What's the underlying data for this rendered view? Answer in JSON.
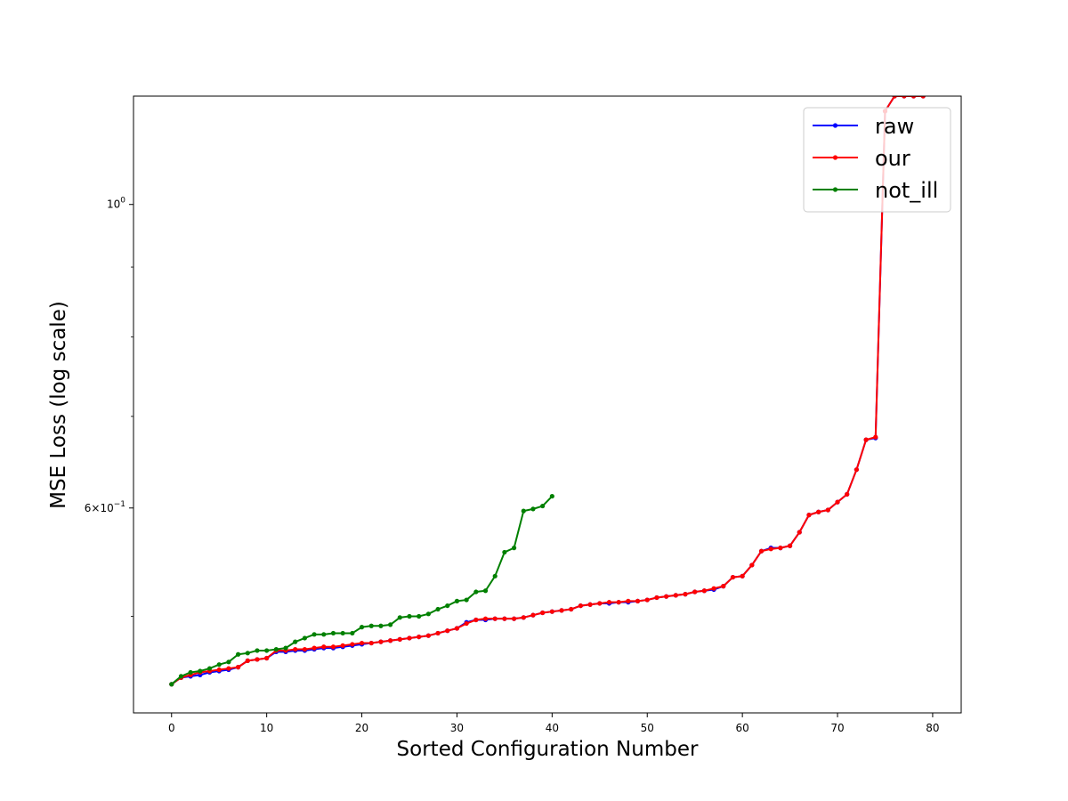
{
  "chart_data": {
    "type": "line",
    "title": "",
    "xlabel": "Sorted Configuration Number",
    "ylabel": "MSE Loss (log scale)",
    "yscale": "log",
    "xlim": [
      -4,
      83
    ],
    "ylim": [
      0.425,
      1.2
    ],
    "xticks": [
      0,
      10,
      20,
      30,
      40,
      50,
      60,
      70,
      80
    ],
    "xtick_labels": [
      "0",
      "10",
      "20",
      "30",
      "40",
      "50",
      "60",
      "70",
      "80"
    ],
    "yticks": [
      1.0,
      0.6
    ],
    "ytick_labels": [
      "10^0",
      "6×10^-1"
    ],
    "grid": false,
    "legend_position": "top-right",
    "series": [
      {
        "name": "raw",
        "color": "#0000ff",
        "values": [
          0.446,
          0.451,
          0.452,
          0.453,
          0.455,
          0.456,
          0.457,
          0.459,
          0.464,
          0.465,
          0.466,
          0.471,
          0.471,
          0.472,
          0.472,
          0.473,
          0.474,
          0.474,
          0.475,
          0.476,
          0.477,
          0.478,
          0.479,
          0.48,
          0.481,
          0.482,
          0.483,
          0.484,
          0.486,
          0.488,
          0.49,
          0.495,
          0.497,
          0.497,
          0.498,
          0.498,
          0.498,
          0.499,
          0.501,
          0.503,
          0.504,
          0.505,
          0.506,
          0.509,
          0.51,
          0.511,
          0.511,
          0.512,
          0.512,
          0.513,
          0.514,
          0.516,
          0.517,
          0.518,
          0.519,
          0.521,
          0.522,
          0.523,
          0.526,
          0.534,
          0.535,
          0.545,
          0.558,
          0.561,
          0.561,
          0.563,
          0.576,
          0.593,
          0.596,
          0.598,
          0.606,
          0.614,
          0.64,
          0.673,
          0.675,
          1.17,
          1.2,
          1.2,
          1.2,
          1.2
        ]
      },
      {
        "name": "our",
        "color": "#ff0000",
        "values": [
          0.446,
          0.451,
          0.453,
          0.455,
          0.456,
          0.457,
          0.458,
          0.459,
          0.464,
          0.465,
          0.466,
          0.472,
          0.472,
          0.473,
          0.473,
          0.474,
          0.475,
          0.475,
          0.476,
          0.477,
          0.478,
          0.478,
          0.479,
          0.48,
          0.481,
          0.482,
          0.483,
          0.484,
          0.486,
          0.488,
          0.49,
          0.494,
          0.497,
          0.498,
          0.498,
          0.498,
          0.498,
          0.499,
          0.501,
          0.503,
          0.504,
          0.505,
          0.506,
          0.509,
          0.51,
          0.511,
          0.512,
          0.512,
          0.513,
          0.513,
          0.514,
          0.516,
          0.517,
          0.518,
          0.519,
          0.521,
          0.522,
          0.524,
          0.526,
          0.534,
          0.535,
          0.545,
          0.558,
          0.56,
          0.561,
          0.563,
          0.576,
          0.593,
          0.596,
          0.598,
          0.606,
          0.614,
          0.64,
          0.673,
          0.676,
          1.17,
          1.2,
          1.2,
          1.2,
          1.2
        ]
      },
      {
        "name": "not_ill",
        "color": "#008000",
        "values": [
          0.446,
          0.452,
          0.455,
          0.456,
          0.458,
          0.461,
          0.463,
          0.469,
          0.47,
          0.472,
          0.472,
          0.473,
          0.474,
          0.479,
          0.482,
          0.485,
          0.485,
          0.486,
          0.486,
          0.486,
          0.491,
          0.492,
          0.492,
          0.493,
          0.499,
          0.5,
          0.5,
          0.502,
          0.506,
          0.509,
          0.513,
          0.514,
          0.521,
          0.522,
          0.535,
          0.557,
          0.561,
          0.597,
          0.599,
          0.602,
          0.612
        ]
      }
    ]
  }
}
